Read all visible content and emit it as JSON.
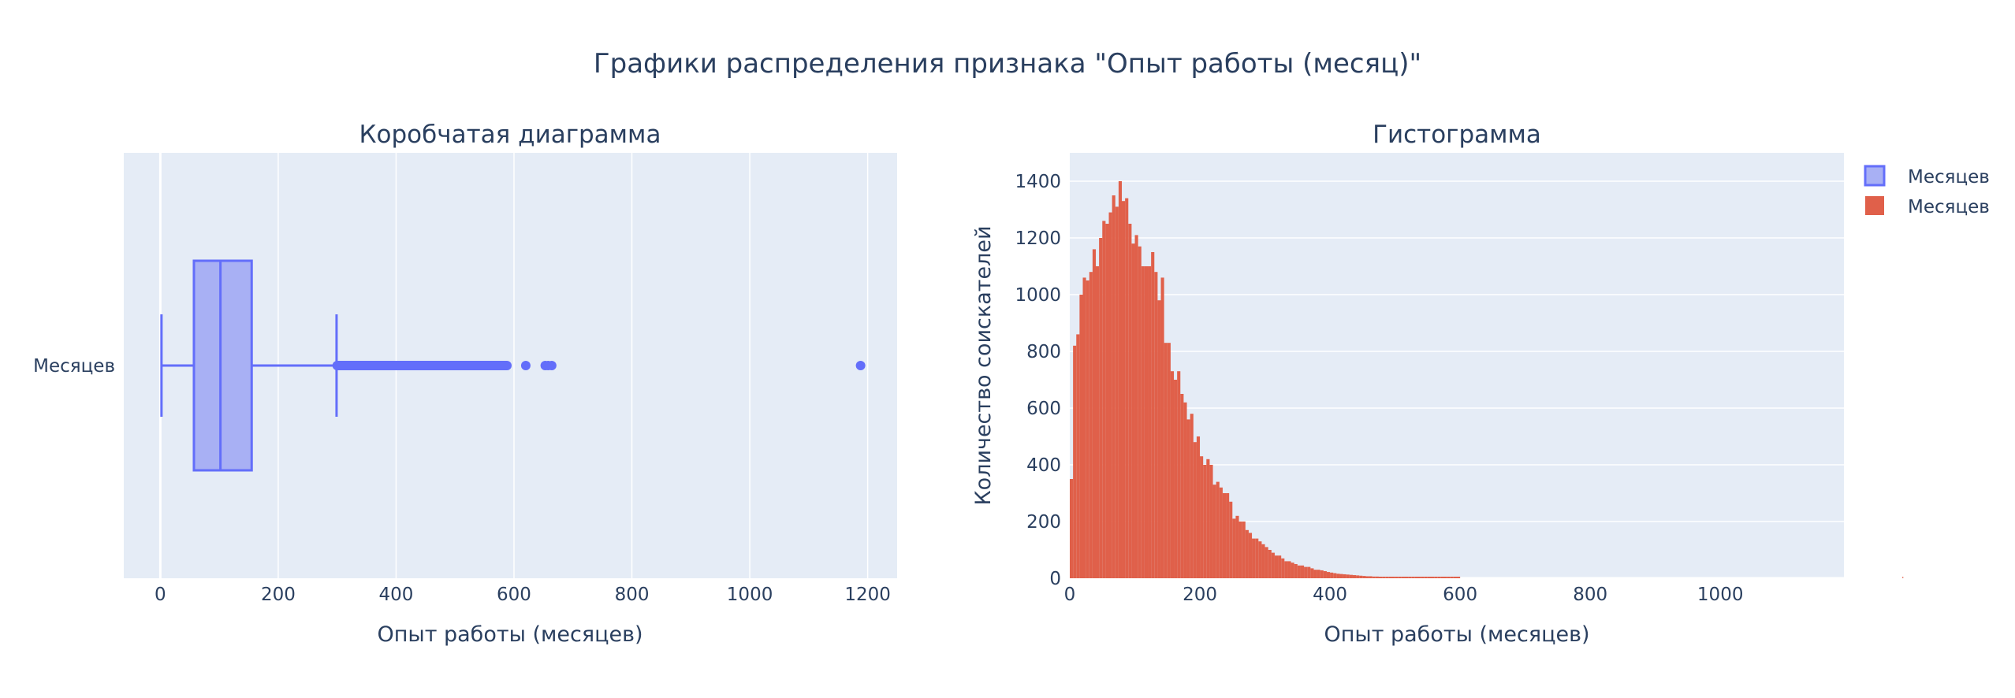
{
  "title": "Графики распределения признака \"Опыт работы (месяц)\"",
  "colors": {
    "plot_bg": "#e5ecf6",
    "grid": "#ffffff",
    "text": "#2a3f5f",
    "box_fill": "#a8b0f4",
    "box_line": "#636efa",
    "hist": "#e0604a"
  },
  "legend": {
    "position": "top-right",
    "items": [
      {
        "label": "Месяцев",
        "symbol": "box",
        "color": "#636efa"
      },
      {
        "label": "Месяцев",
        "symbol": "hist",
        "color": "#e0604a"
      }
    ]
  },
  "chart_data": [
    {
      "type": "box",
      "title": "Коробчатая диаграмма",
      "xlabel": "Опыт работы (месяцев)",
      "ylabel": "",
      "category": "Месяцев",
      "orientation": "horizontal",
      "xlim": [
        -62,
        1250
      ],
      "xticks": [
        0,
        200,
        400,
        600,
        800,
        1000,
        1200
      ],
      "xtick_labels": [
        "0",
        "200",
        "400",
        "600",
        "800",
        "1000",
        "1200"
      ],
      "grid": true,
      "stats": {
        "lowerfence": 2,
        "q1": 57,
        "median": 102,
        "q3": 155,
        "upperfence": 299
      },
      "outliers_range": [
        300,
        588
      ],
      "outliers": [
        620,
        653,
        658,
        664,
        1188
      ]
    },
    {
      "type": "histogram",
      "title": "Гистограмма",
      "xlabel": "Опыт работы (месяцев)",
      "ylabel": "Количество соискателей",
      "xlim": [
        0,
        1190
      ],
      "ylim": [
        0,
        1500
      ],
      "xticks": [
        0,
        200,
        400,
        600,
        800,
        1000
      ],
      "xtick_labels": [
        "0",
        "200",
        "400",
        "600",
        "800",
        "1000"
      ],
      "yticks": [
        0,
        200,
        400,
        600,
        800,
        1000,
        1200,
        1400
      ],
      "ytick_labels": [
        "0",
        "200",
        "400",
        "600",
        "800",
        "1000",
        "1200",
        "1400"
      ],
      "grid": true,
      "bin_width": 5,
      "bin_start": 0,
      "counts": [
        350,
        820,
        860,
        1000,
        1060,
        1050,
        1080,
        1160,
        1100,
        1200,
        1260,
        1250,
        1290,
        1350,
        1310,
        1400,
        1330,
        1340,
        1250,
        1180,
        1210,
        1170,
        1100,
        1100,
        1100,
        1150,
        1080,
        980,
        1060,
        830,
        830,
        730,
        700,
        730,
        650,
        620,
        560,
        580,
        480,
        500,
        430,
        400,
        420,
        400,
        330,
        340,
        320,
        300,
        300,
        270,
        210,
        220,
        200,
        200,
        170,
        160,
        140,
        140,
        130,
        120,
        110,
        100,
        90,
        80,
        80,
        70,
        60,
        60,
        55,
        50,
        45,
        45,
        40,
        40,
        35,
        30,
        30,
        28,
        25,
        22,
        20,
        18,
        16,
        15,
        14,
        13,
        12,
        11,
        10,
        9,
        8,
        7,
        7,
        6,
        6,
        5,
        5,
        4,
        4,
        3,
        3,
        3,
        2,
        2,
        2,
        2,
        2,
        1,
        1,
        1,
        1,
        1,
        1,
        1,
        1,
        1,
        1,
        1,
        1,
        1,
        0,
        0,
        0,
        0,
        0,
        0,
        0,
        0,
        0,
        0,
        0,
        0,
        0,
        0,
        0,
        0,
        0,
        0,
        0,
        0,
        0,
        0,
        0,
        0,
        0,
        0,
        0,
        0,
        0,
        0,
        0,
        0,
        0,
        0,
        0,
        0,
        0,
        0,
        0,
        0,
        0,
        0,
        0,
        0,
        0,
        0,
        0,
        0,
        0,
        0,
        0,
        0,
        0,
        0,
        0,
        0,
        0,
        0,
        0,
        0,
        0,
        0,
        0,
        0,
        0,
        0,
        0,
        0,
        0,
        0,
        0,
        0,
        0,
        0,
        0,
        0,
        0,
        0,
        0,
        0,
        0,
        0,
        0,
        0,
        0,
        0,
        0,
        0,
        0,
        0,
        0,
        0,
        0,
        0,
        0,
        0,
        0,
        0,
        0,
        0,
        0,
        0,
        0,
        0,
        0,
        0,
        0,
        0,
        0,
        0,
        0,
        0,
        0,
        0,
        0,
        0,
        0,
        0,
        0,
        0,
        0,
        0,
        0,
        0,
        0,
        0,
        0,
        0,
        0,
        0,
        0,
        0,
        0,
        0,
        0,
        0,
        1
      ]
    }
  ]
}
